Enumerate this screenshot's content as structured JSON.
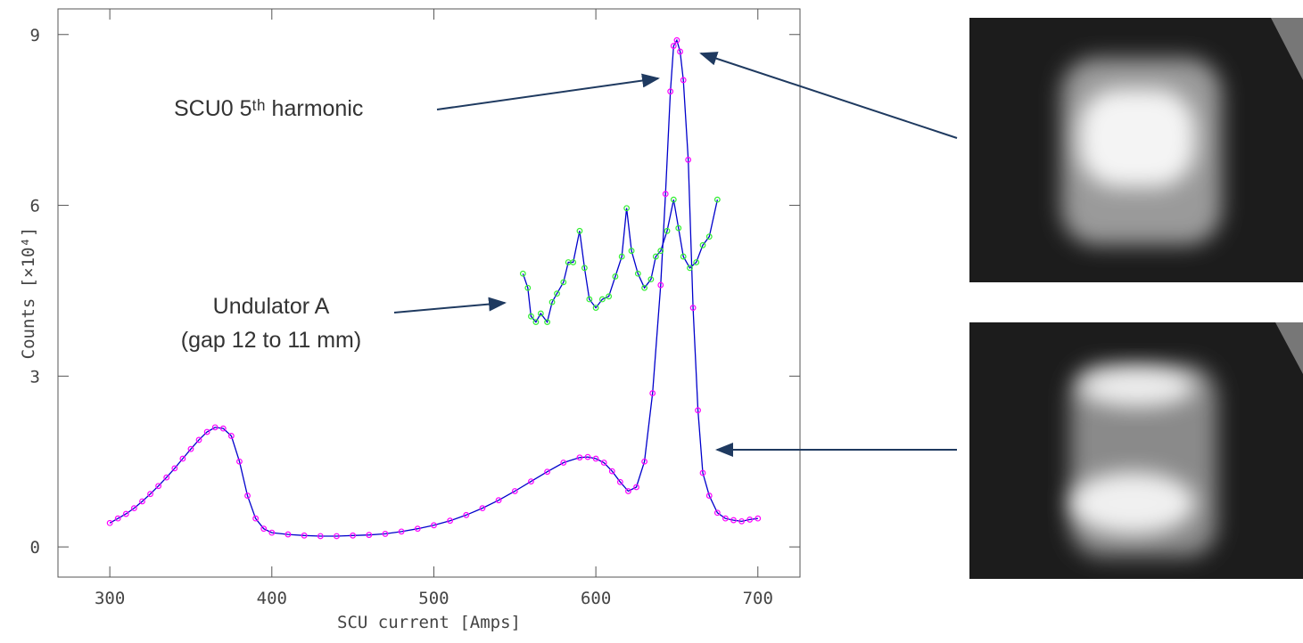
{
  "chart_data": {
    "type": "line",
    "xlabel": "SCU current [Amps]",
    "ylabel": "Counts [×10⁴]",
    "xlim": [
      268,
      726
    ],
    "ylim": [
      -0.53,
      9.45
    ],
    "xticks": [
      300,
      400,
      500,
      600,
      700
    ],
    "yticks": [
      0,
      3,
      6,
      9
    ],
    "line_color": "#0000cc",
    "annotations": [
      "SCU0 5ᵗʰ harmonic",
      "Undulator A",
      "(gap 12 to 11 mm)"
    ],
    "series": [
      {
        "color": "#ff00ff",
        "x": [
          300,
          305,
          310,
          315,
          320,
          325,
          330,
          335,
          340,
          345,
          350,
          355,
          360,
          365,
          370,
          375,
          380,
          385,
          390,
          395,
          400,
          410,
          420,
          430,
          440,
          450,
          460,
          470,
          480,
          490,
          500,
          510,
          520,
          530,
          540,
          550,
          560,
          570,
          580,
          590,
          595,
          600,
          605,
          610,
          615,
          620,
          625,
          630,
          635,
          640,
          643,
          646,
          648,
          650,
          652,
          654,
          657,
          660,
          663,
          666,
          670,
          675,
          680,
          685,
          690,
          695,
          700
        ],
        "values": [
          0.42,
          0.5,
          0.58,
          0.68,
          0.8,
          0.93,
          1.07,
          1.22,
          1.38,
          1.55,
          1.72,
          1.88,
          2.02,
          2.1,
          2.08,
          1.95,
          1.5,
          0.9,
          0.5,
          0.32,
          0.25,
          0.22,
          0.2,
          0.19,
          0.19,
          0.2,
          0.21,
          0.23,
          0.27,
          0.32,
          0.38,
          0.46,
          0.56,
          0.68,
          0.82,
          0.98,
          1.15,
          1.32,
          1.48,
          1.57,
          1.58,
          1.55,
          1.48,
          1.33,
          1.14,
          0.98,
          1.05,
          1.5,
          2.7,
          4.6,
          6.2,
          8.0,
          8.8,
          8.9,
          8.7,
          8.2,
          6.8,
          4.2,
          2.4,
          1.3,
          0.9,
          0.6,
          0.5,
          0.47,
          0.45,
          0.48,
          0.5
        ]
      },
      {
        "color": "#33ee33",
        "x": [
          555,
          558,
          560,
          563,
          566,
          570,
          573,
          576,
          580,
          583,
          586,
          590,
          593,
          596,
          600,
          604,
          608,
          612,
          616,
          619,
          622,
          626,
          630,
          634,
          637,
          640,
          644,
          648,
          651,
          654,
          658,
          662,
          666,
          670,
          675
        ],
        "values": [
          4.8,
          4.55,
          4.05,
          3.95,
          4.1,
          3.95,
          4.3,
          4.45,
          4.65,
          5.0,
          5.0,
          5.55,
          4.9,
          4.35,
          4.2,
          4.35,
          4.4,
          4.75,
          5.1,
          5.95,
          5.2,
          4.8,
          4.55,
          4.7,
          5.1,
          5.2,
          5.55,
          6.1,
          5.6,
          5.1,
          4.9,
          5.0,
          5.3,
          5.45,
          6.1
        ]
      }
    ]
  }
}
